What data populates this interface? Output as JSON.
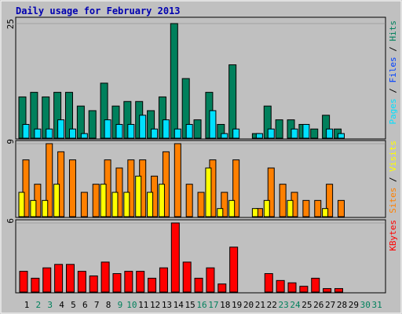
{
  "chart_data": [
    {
      "type": "bar",
      "title": "Daily usage for February 2013",
      "categories": [
        "1",
        "2",
        "3",
        "4",
        "5",
        "6",
        "7",
        "8",
        "9",
        "10",
        "11",
        "12",
        "13",
        "14",
        "15",
        "16",
        "17",
        "18",
        "19",
        "20",
        "21",
        "22",
        "23",
        "24",
        "25",
        "26",
        "27",
        "28",
        "29",
        "30",
        "31"
      ],
      "weekend": [
        false,
        true,
        true,
        false,
        false,
        false,
        false,
        false,
        true,
        true,
        false,
        false,
        false,
        false,
        false,
        true,
        true,
        false,
        false,
        false,
        false,
        false,
        true,
        true,
        false,
        false,
        false,
        false,
        false,
        true,
        true
      ],
      "weekday_color": "#000000",
      "weekend_color": "#00805c",
      "ylim": [
        0,
        25
      ],
      "yticks": [
        25
      ],
      "label_parts": [
        {
          "text": "Pages",
          "color": "#00e0ff"
        },
        {
          "text": " / ",
          "color": "#000000"
        },
        {
          "text": "Files",
          "color": "#0040ff"
        },
        {
          "text": " / ",
          "color": "#000000"
        },
        {
          "text": "Hits",
          "color": "#00805c"
        }
      ],
      "series": [
        {
          "name": "Hits",
          "color": "#00805c",
          "values": [
            9,
            10,
            9,
            10,
            10,
            7,
            6,
            12,
            7,
            8,
            8,
            6,
            9,
            25,
            13,
            4,
            10,
            3,
            16,
            0,
            1,
            7,
            4,
            4,
            3,
            2,
            5,
            2,
            0,
            0,
            0
          ]
        },
        {
          "name": "Pages",
          "color": "#00e0ff",
          "values": [
            3,
            2,
            2,
            4,
            2,
            1,
            0,
            4,
            3,
            3,
            5,
            2,
            4,
            2,
            3,
            0,
            6,
            1,
            2,
            0,
            1,
            2,
            0,
            2,
            3,
            0,
            2,
            1,
            0,
            0,
            0
          ]
        }
      ]
    },
    {
      "type": "bar",
      "ylim": [
        0,
        9
      ],
      "yticks": [
        9
      ],
      "label_parts": [
        {
          "text": "Sites",
          "color": "#ff8000"
        },
        {
          "text": " / ",
          "color": "#000000"
        },
        {
          "text": "Visits",
          "color": "#ffff00"
        }
      ],
      "series": [
        {
          "name": "Sites",
          "color": "#ff8000",
          "values": [
            7,
            4,
            9,
            8,
            7,
            3,
            4,
            7,
            6,
            7,
            7,
            5,
            8,
            9,
            4,
            3,
            7,
            3,
            7,
            0,
            1,
            6,
            4,
            3,
            2,
            2,
            4,
            2,
            0,
            0,
            0
          ]
        },
        {
          "name": "Visits",
          "color": "#ffff00",
          "values": [
            3,
            2,
            2,
            4,
            0,
            0,
            0,
            4,
            3,
            3,
            5,
            3,
            4,
            0,
            0,
            0,
            6,
            1,
            2,
            0,
            1,
            2,
            0,
            2,
            0,
            0,
            1,
            0,
            0,
            0,
            0
          ]
        }
      ]
    },
    {
      "type": "bar",
      "ylim": [
        0,
        6
      ],
      "yticks": [
        6
      ],
      "label_parts": [
        {
          "text": "KBytes",
          "color": "#ff0000"
        }
      ],
      "series": [
        {
          "name": "KBytes",
          "color": "#ff0000",
          "values": [
            1.8,
            1.2,
            2.1,
            2.4,
            2.4,
            1.8,
            1.4,
            2.6,
            1.6,
            1.8,
            1.8,
            1.2,
            2.1,
            6,
            2.6,
            1.2,
            2.1,
            0.7,
            3.9,
            0,
            0,
            1.6,
            1.0,
            0.8,
            0.5,
            1.2,
            0.3,
            0.3,
            0,
            0,
            0
          ]
        }
      ]
    }
  ]
}
